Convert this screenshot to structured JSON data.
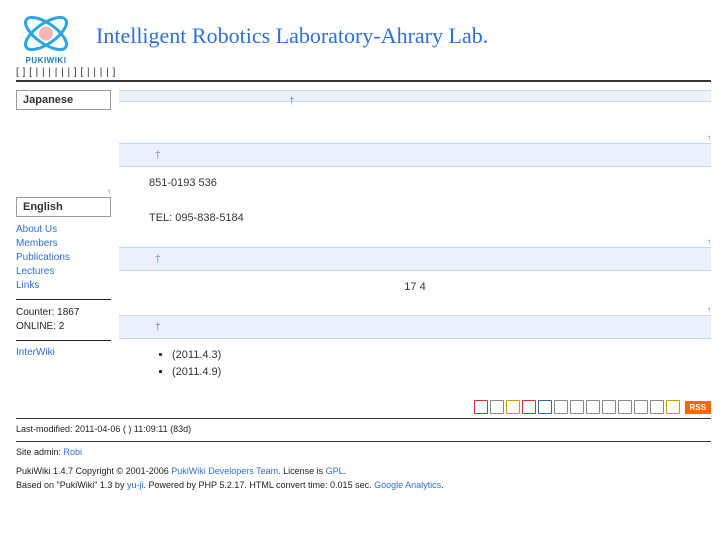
{
  "header": {
    "logo_label": "PUKIWIKI",
    "title": "Intelligent Robotics Laboratory-Ahrary Lab."
  },
  "navbar_raw": "[    ]   [   |     |    |    |      |    |     ]   [    |    |    |    |     ]",
  "sidebar": {
    "heading_jp": "Japanese",
    "heading_en": "English",
    "links": [
      {
        "label": "About Us"
      },
      {
        "label": "Members"
      },
      {
        "label": "Publications"
      },
      {
        "label": "Lectures"
      },
      {
        "label": "Links"
      }
    ],
    "counter_label": "Counter:",
    "counter_value": "1867",
    "online_label": "ONLINE:",
    "online_value": "2",
    "interwiki": "InterWiki"
  },
  "main": {
    "bar1": " ",
    "bar2": " ",
    "addr_line1": "851-0193     536",
    "addr_line2": "TEL: 095-838-5184",
    "bar3": " ",
    "mid_text": "17  4",
    "bar4": " ",
    "bullets": [
      "(2011.4.3)",
      "  (2011.4.9)"
    ]
  },
  "icons": [
    {
      "name": "print-icon",
      "bg": "#fff",
      "b": "#c33"
    },
    {
      "name": "page-icon",
      "bg": "#fff",
      "b": "#888"
    },
    {
      "name": "edit-icon",
      "bg": "#fff",
      "b": "#c90"
    },
    {
      "name": "delete-icon",
      "bg": "#fff",
      "b": "#c33"
    },
    {
      "name": "attach-icon",
      "bg": "#fff",
      "b": "#369"
    },
    {
      "name": "copy-icon",
      "bg": "#fff",
      "b": "#888"
    },
    {
      "name": "rename-icon",
      "bg": "#fff",
      "b": "#888"
    },
    {
      "name": "reload-icon",
      "bg": "#fff",
      "b": "#888"
    },
    {
      "name": "new-icon",
      "bg": "#fff",
      "b": "#888"
    },
    {
      "name": "list-icon",
      "bg": "#fff",
      "b": "#888"
    },
    {
      "name": "search-icon",
      "bg": "#fff",
      "b": "#888"
    },
    {
      "name": "recent-icon",
      "bg": "#fff",
      "b": "#888"
    },
    {
      "name": "help-icon",
      "bg": "#fff",
      "b": "#c90"
    }
  ],
  "rss_label": "RSS",
  "footer": {
    "lastmod": "Last-modified: 2011-04-06 ( ) 11:09:11 (83d)",
    "admin_pre": "Site admin: ",
    "admin_link": "Robi",
    "line1_pre": "PukiWiki 1.4.7 Copyright © 2001-2006 ",
    "line1_link1": "PukiWiki Developers Team",
    "line1_mid": ". License is ",
    "line1_link2": "GPL",
    "line1_suf": ".",
    "line2_pre": "Based on \"PukiWiki\" 1.3 by ",
    "line2_link1": "yu-ji",
    "line2_mid": ". Powered by PHP 5.2.17. HTML convert time: 0.015 sec. ",
    "line2_link2": "Google Analytics",
    "line2_suf": "."
  }
}
